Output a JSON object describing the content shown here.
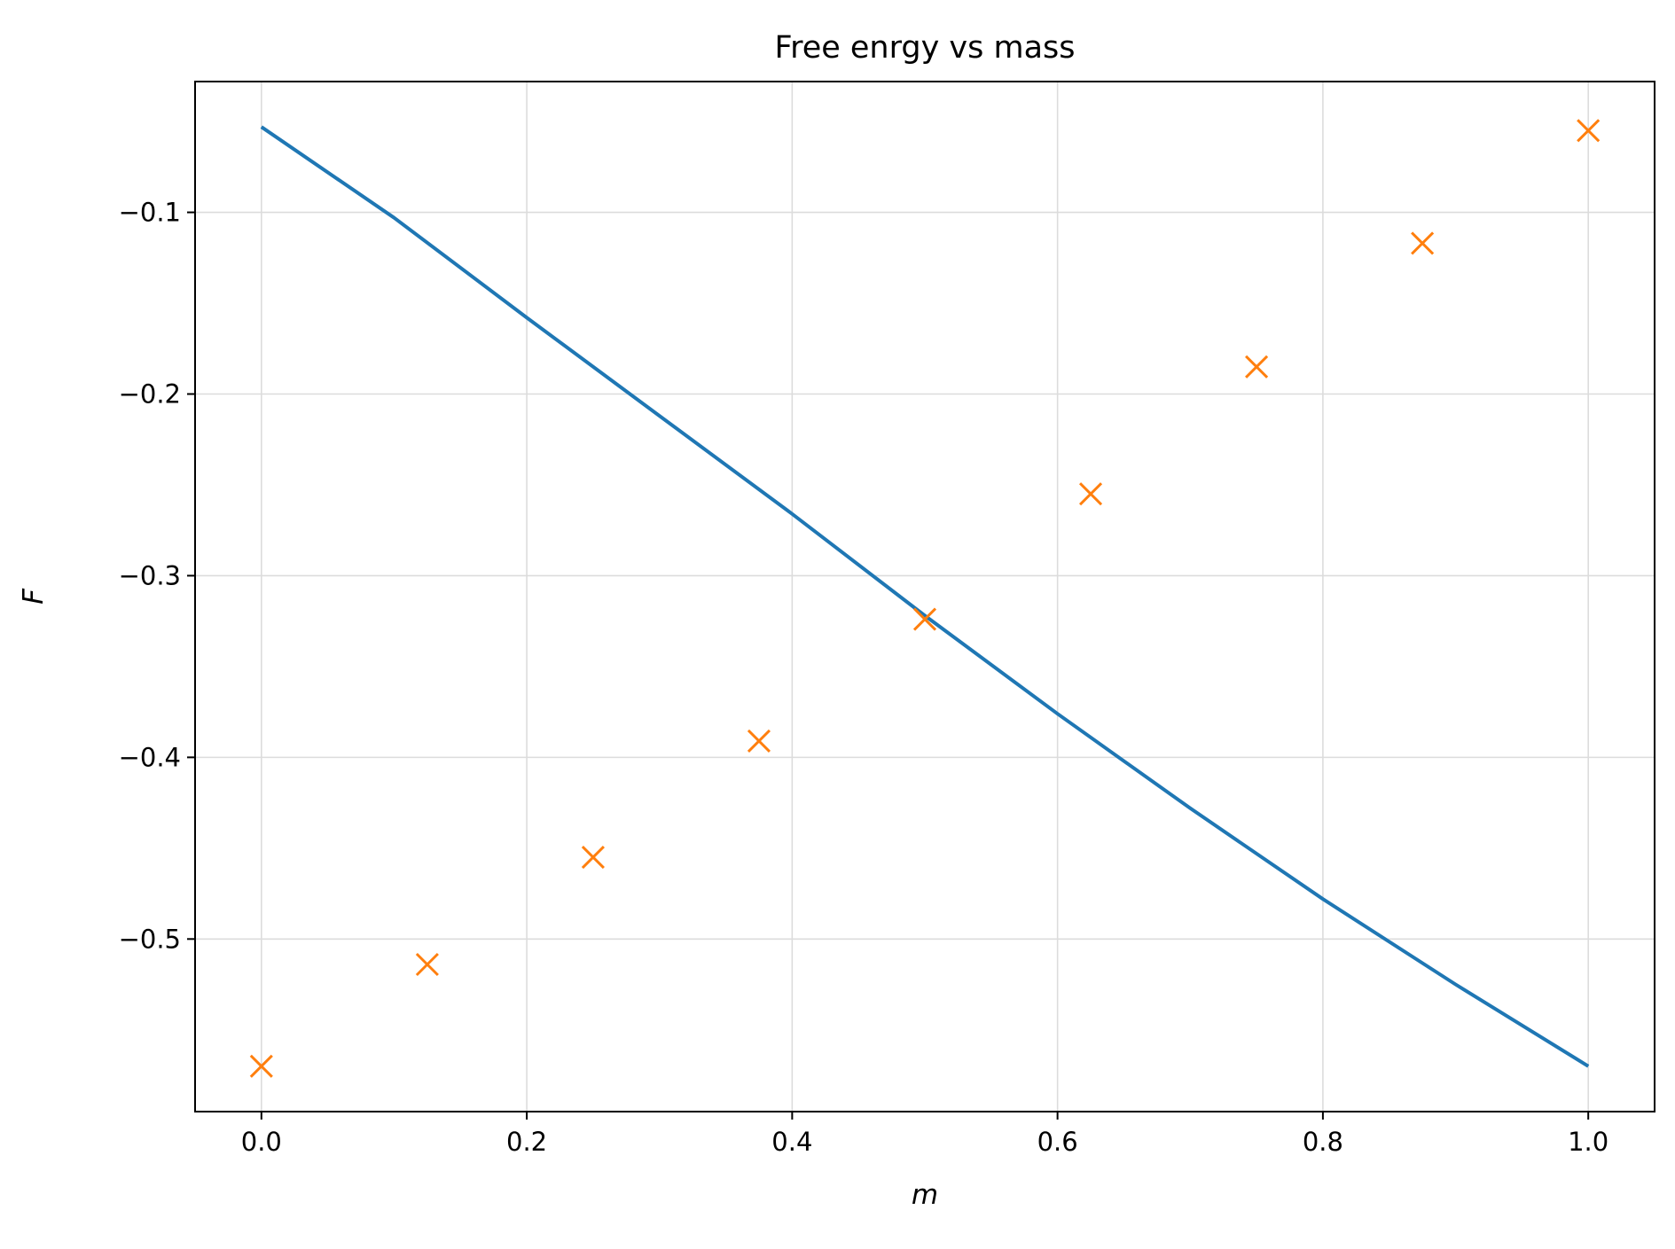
{
  "chart_data": {
    "type": "line",
    "title": "Free enrgy vs mass",
    "xlabel": "m",
    "ylabel": "F",
    "xlim": [
      -0.05,
      1.05
    ],
    "ylim": [
      -0.595,
      -0.028
    ],
    "grid": true,
    "x_ticks": [
      0.0,
      0.2,
      0.4,
      0.6,
      0.8,
      1.0
    ],
    "x_tick_labels": [
      "0.0",
      "0.2",
      "0.4",
      "0.6",
      "0.8",
      "1.0"
    ],
    "y_ticks": [
      -0.1,
      -0.2,
      -0.3,
      -0.4,
      -0.5
    ],
    "y_tick_labels": [
      "−0.1",
      "−0.2",
      "−0.3",
      "−0.4",
      "−0.5"
    ],
    "series": [
      {
        "kind": "line",
        "color": "#1f77b4",
        "x": [
          0.0,
          0.1,
          0.2,
          0.3,
          0.4,
          0.5,
          0.6,
          0.7,
          0.8,
          0.9,
          1.0
        ],
        "y": [
          -0.053,
          -0.103,
          -0.158,
          -0.212,
          -0.266,
          -0.322,
          -0.376,
          -0.428,
          -0.478,
          -0.525,
          -0.57
        ]
      },
      {
        "kind": "scatter",
        "marker": "x",
        "color": "#ff7f0e",
        "x": [
          0.0,
          0.125,
          0.25,
          0.375,
          0.5,
          0.625,
          0.75,
          0.875,
          1.0
        ],
        "y": [
          -0.57,
          -0.514,
          -0.455,
          -0.391,
          -0.324,
          -0.255,
          -0.185,
          -0.117,
          -0.055
        ]
      }
    ]
  }
}
